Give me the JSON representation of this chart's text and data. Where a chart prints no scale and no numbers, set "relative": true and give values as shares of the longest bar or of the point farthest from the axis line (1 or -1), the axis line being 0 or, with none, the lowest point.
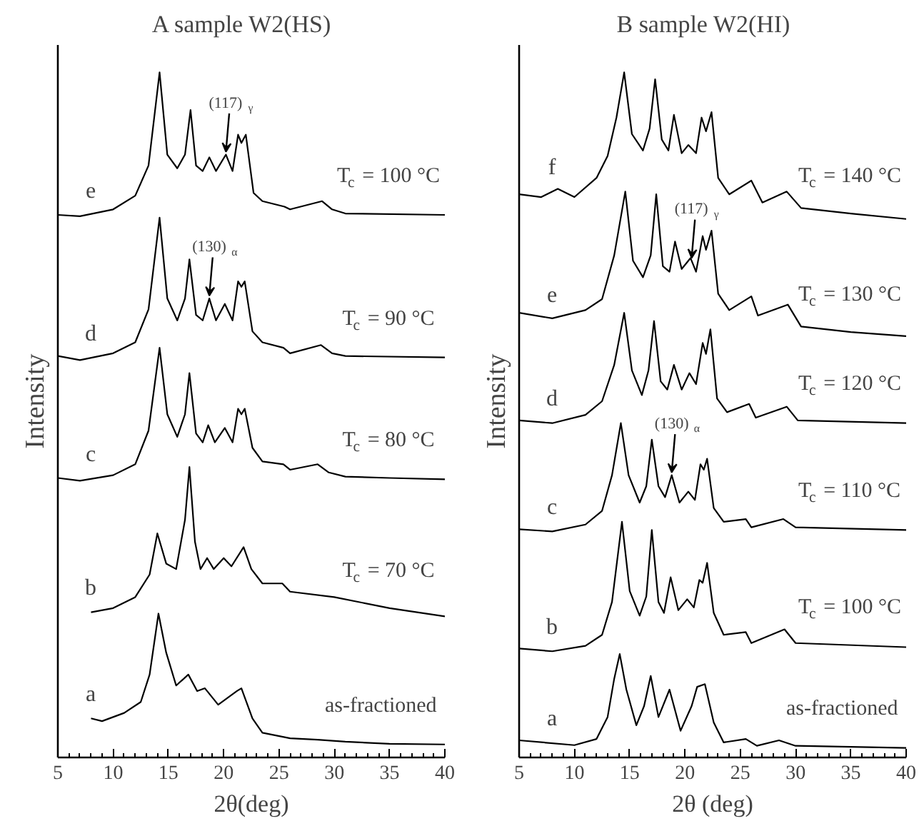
{
  "chart_data": [
    {
      "type": "line",
      "relative": true,
      "title": "A    sample W2(HS)",
      "xlabel": "2θ(deg)",
      "ylabel": "Intensity",
      "xlim": [
        5,
        40
      ],
      "xticks": [
        5,
        10,
        15,
        20,
        25,
        30,
        35,
        40
      ],
      "grid": false,
      "series": [
        {
          "name": "a",
          "color": "#000000",
          "x": [
            8,
            9,
            11,
            12.5,
            13.3,
            14.1,
            14.8,
            15.7,
            16.8,
            17.6,
            18.3,
            19.5,
            21.2,
            21.6,
            22.6,
            23.5,
            26,
            28.5,
            31,
            35,
            40
          ],
          "values": [
            0.057,
            0.053,
            0.065,
            0.081,
            0.121,
            0.21,
            0.153,
            0.105,
            0.121,
            0.097,
            0.101,
            0.077,
            0.097,
            0.101,
            0.057,
            0.036,
            0.028,
            0.026,
            0.023,
            0.02,
            0.019
          ]
        },
        {
          "name": "b",
          "color": "#000000",
          "x": [
            8,
            10,
            12,
            13.3,
            14,
            14.8,
            15.7,
            16.5,
            16.9,
            17.4,
            17.9,
            18.5,
            19.1,
            20,
            20.7,
            21.8,
            22.5,
            23.5,
            25.3,
            26,
            30,
            35,
            40
          ],
          "values": [
            0.212,
            0.218,
            0.234,
            0.267,
            0.327,
            0.283,
            0.275,
            0.347,
            0.424,
            0.315,
            0.275,
            0.291,
            0.275,
            0.291,
            0.279,
            0.307,
            0.275,
            0.254,
            0.254,
            0.242,
            0.234,
            0.218,
            0.206
          ]
        },
        {
          "name": "c",
          "color": "#000000",
          "x": [
            5,
            7,
            10,
            12,
            13.2,
            14.2,
            14.9,
            15.8,
            16.5,
            16.9,
            17.5,
            18.1,
            18.6,
            19.2,
            20.1,
            20.8,
            21.3,
            21.6,
            21.9,
            22.6,
            23.5,
            25.4,
            26,
            28.5,
            29.5,
            31,
            35,
            40
          ],
          "values": [
            0.408,
            0.404,
            0.412,
            0.428,
            0.477,
            0.598,
            0.501,
            0.468,
            0.501,
            0.561,
            0.473,
            0.46,
            0.485,
            0.46,
            0.481,
            0.46,
            0.509,
            0.501,
            0.509,
            0.452,
            0.432,
            0.428,
            0.42,
            0.428,
            0.416,
            0.41,
            0.408,
            0.406
          ]
        },
        {
          "name": "d",
          "color": "#000000",
          "x": [
            5,
            7,
            10,
            12,
            13.2,
            14.2,
            14.9,
            15.8,
            16.5,
            16.9,
            17.5,
            18.1,
            18.7,
            19.3,
            20.1,
            20.8,
            21.3,
            21.6,
            21.9,
            22.6,
            23.5,
            25.4,
            26,
            28.8,
            29.8,
            31,
            40
          ],
          "values": [
            0.586,
            0.58,
            0.59,
            0.606,
            0.654,
            0.788,
            0.67,
            0.638,
            0.67,
            0.727,
            0.646,
            0.638,
            0.67,
            0.638,
            0.662,
            0.638,
            0.695,
            0.687,
            0.695,
            0.622,
            0.606,
            0.598,
            0.59,
            0.602,
            0.59,
            0.586,
            0.584
          ]
        },
        {
          "name": "e",
          "color": "#000000",
          "x": [
            5,
            7,
            10,
            12,
            13.2,
            14.2,
            14.9,
            15.8,
            16.5,
            17,
            17.5,
            18.1,
            18.7,
            19.3,
            20.2,
            20.8,
            21.3,
            21.6,
            22,
            22.7,
            23.5,
            25.5,
            26,
            28.9,
            29.8,
            31,
            40
          ],
          "values": [
            0.792,
            0.79,
            0.8,
            0.82,
            0.864,
            1,
            0.88,
            0.86,
            0.88,
            0.945,
            0.864,
            0.856,
            0.876,
            0.856,
            0.88,
            0.856,
            0.909,
            0.897,
            0.909,
            0.824,
            0.812,
            0.804,
            0.8,
            0.812,
            0.8,
            0.794,
            0.792
          ]
        }
      ],
      "annotations": [
        "T$_{c}$ = 100 °C",
        "T$_{c}$ = 90 °C",
        "T$_{c}$ = 80 °C",
        "T$_{c}$ = 70 °C",
        "as-fractioned",
        {
          "text": "(117)$_{γ}$",
          "x": 20.2,
          "y": 0.88
        },
        {
          "text": "(130)$_{α}$",
          "x": 18.7,
          "y": 0.67
        }
      ]
    },
    {
      "type": "line",
      "relative": true,
      "title": "B    sample W2(HI)",
      "xlabel": "2θ (deg)",
      "ylabel": "Intensity",
      "xlim": [
        5,
        40
      ],
      "xticks": [
        5,
        10,
        15,
        20,
        25,
        30,
        35,
        40
      ],
      "grid": false,
      "series": [
        {
          "name": "a",
          "color": "#000000",
          "x": [
            5,
            10,
            12,
            13,
            13.6,
            14.1,
            14.7,
            15.6,
            16.3,
            16.9,
            17.6,
            18.6,
            19.6,
            20.6,
            21.1,
            21.8,
            22.6,
            23.5,
            25.5,
            26.5,
            28.5,
            30,
            40
          ],
          "values": [
            0.025,
            0.018,
            0.027,
            0.059,
            0.115,
            0.151,
            0.099,
            0.047,
            0.075,
            0.119,
            0.059,
            0.099,
            0.039,
            0.075,
            0.103,
            0.107,
            0.051,
            0.022,
            0.027,
            0.017,
            0.025,
            0.017,
            0.014
          ]
        },
        {
          "name": "b",
          "color": "#000000",
          "x": [
            5,
            8,
            11,
            12.5,
            13.4,
            14.3,
            15,
            15.9,
            16.5,
            17,
            17.6,
            18.1,
            18.7,
            19.4,
            20.2,
            20.8,
            21.3,
            21.6,
            22,
            22.6,
            23.5,
            25.5,
            26,
            29,
            30,
            40
          ],
          "values": [
            0.159,
            0.155,
            0.163,
            0.179,
            0.227,
            0.344,
            0.243,
            0.207,
            0.235,
            0.332,
            0.227,
            0.211,
            0.263,
            0.215,
            0.231,
            0.219,
            0.259,
            0.255,
            0.284,
            0.211,
            0.179,
            0.183,
            0.167,
            0.187,
            0.167,
            0.161
          ]
        },
        {
          "name": "c",
          "color": "#000000",
          "x": [
            5,
            8,
            11,
            12.5,
            13.4,
            14.2,
            14.9,
            15.9,
            16.5,
            17,
            17.6,
            18.2,
            18.8,
            19.5,
            20.3,
            20.9,
            21.4,
            21.7,
            22,
            22.6,
            23.5,
            25.5,
            26,
            28.9,
            30,
            40
          ],
          "values": [
            0.333,
            0.33,
            0.34,
            0.36,
            0.412,
            0.488,
            0.412,
            0.372,
            0.396,
            0.464,
            0.396,
            0.38,
            0.412,
            0.372,
            0.388,
            0.376,
            0.428,
            0.42,
            0.436,
            0.364,
            0.344,
            0.348,
            0.336,
            0.348,
            0.336,
            0.332
          ]
        },
        {
          "name": "d",
          "color": "#000000",
          "x": [
            5,
            8,
            11,
            12.5,
            13.6,
            14.5,
            15.2,
            16.1,
            16.7,
            17.2,
            17.8,
            18.4,
            19,
            19.7,
            20.4,
            21,
            21.6,
            21.9,
            22.3,
            22.9,
            23.8,
            25.8,
            26.4,
            29.2,
            30.2,
            40
          ],
          "values": [
            0.492,
            0.488,
            0.5,
            0.52,
            0.573,
            0.649,
            0.565,
            0.529,
            0.565,
            0.637,
            0.549,
            0.537,
            0.573,
            0.537,
            0.561,
            0.545,
            0.605,
            0.589,
            0.625,
            0.524,
            0.504,
            0.516,
            0.496,
            0.512,
            0.492,
            0.488
          ]
        },
        {
          "name": "e",
          "color": "#000000",
          "x": [
            5,
            8,
            11,
            12.5,
            13.6,
            14.6,
            15.3,
            16.2,
            16.9,
            17.4,
            18,
            18.6,
            19.1,
            19.7,
            20.5,
            21,
            21.6,
            21.9,
            22.4,
            23,
            24,
            26,
            26.6,
            29.3,
            30.5,
            35,
            40
          ],
          "values": [
            0.649,
            0.641,
            0.653,
            0.669,
            0.733,
            0.826,
            0.725,
            0.701,
            0.733,
            0.822,
            0.717,
            0.709,
            0.753,
            0.713,
            0.729,
            0.709,
            0.761,
            0.741,
            0.769,
            0.677,
            0.653,
            0.673,
            0.645,
            0.661,
            0.629,
            0.621,
            0.615
          ]
        },
        {
          "name": "f",
          "color": "#000000",
          "x": [
            5,
            7,
            8.5,
            10,
            12,
            13,
            13.8,
            14.5,
            15.2,
            16.2,
            16.8,
            17.3,
            17.9,
            18.5,
            19,
            19.7,
            20.3,
            21,
            21.5,
            21.9,
            22.4,
            23,
            24,
            26,
            27,
            29.2,
            30.5,
            35,
            40
          ],
          "values": [
            0.822,
            0.818,
            0.83,
            0.818,
            0.846,
            0.878,
            0.934,
            1,
            0.91,
            0.886,
            0.918,
            0.99,
            0.902,
            0.886,
            0.938,
            0.882,
            0.894,
            0.882,
            0.934,
            0.914,
            0.942,
            0.846,
            0.822,
            0.842,
            0.81,
            0.826,
            0.802,
            0.794,
            0.786
          ]
        }
      ],
      "annotations": [
        "T$_{c}$ = 140 °C",
        "T$_{c}$ = 130 °C",
        "T$_{c}$ = 120 °C",
        "T$_{c}$ = 110 °C",
        "T$_{c}$ = 100 °C",
        "as-fractioned",
        {
          "text": "(117)$_{γ}$",
          "x": 20.6,
          "y": 0.725
        },
        {
          "text": "(130)$_{α}$",
          "x": 18.8,
          "y": 0.412
        }
      ]
    }
  ]
}
